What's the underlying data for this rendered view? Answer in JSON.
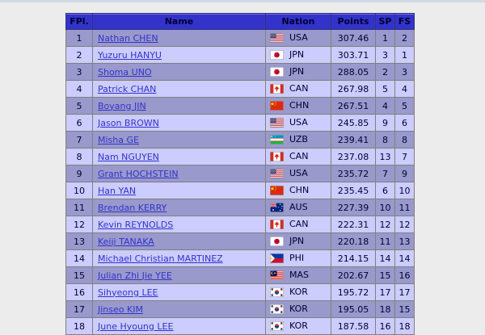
{
  "page": {
    "background": "#ececec",
    "top_strip_color": "#cfd9e4"
  },
  "table": {
    "headers": [
      "FPl.",
      "Name",
      "Nation",
      "Points",
      "SP",
      "FS"
    ],
    "colors": {
      "header_bg": "#3333cc",
      "header_text": "#000033",
      "row_odd": "#9999cc",
      "row_even": "#ccccff",
      "cell_text": "#000033",
      "link": "#3333cc",
      "cell_border": "#808080",
      "outer_border": "#4d4d4d"
    },
    "rows": [
      {
        "rank": "1",
        "name": "Nathan CHEN",
        "nation": "USA",
        "flag": "usa",
        "points": "307.46",
        "sp": "1",
        "fs": "2"
      },
      {
        "rank": "2",
        "name": "Yuzuru HANYU",
        "nation": "JPN",
        "flag": "jpn",
        "points": "303.71",
        "sp": "3",
        "fs": "1"
      },
      {
        "rank": "3",
        "name": "Shoma UNO",
        "nation": "JPN",
        "flag": "jpn",
        "points": "288.05",
        "sp": "2",
        "fs": "3"
      },
      {
        "rank": "4",
        "name": "Patrick CHAN",
        "nation": "CAN",
        "flag": "can",
        "points": "267.98",
        "sp": "5",
        "fs": "4"
      },
      {
        "rank": "5",
        "name": "Boyang JIN",
        "nation": "CHN",
        "flag": "chn",
        "points": "267.51",
        "sp": "4",
        "fs": "5"
      },
      {
        "rank": "6",
        "name": "Jason BROWN",
        "nation": "USA",
        "flag": "usa",
        "points": "245.85",
        "sp": "9",
        "fs": "6"
      },
      {
        "rank": "7",
        "name": "Misha GE",
        "nation": "UZB",
        "flag": "uzb",
        "points": "239.41",
        "sp": "8",
        "fs": "8"
      },
      {
        "rank": "8",
        "name": "Nam NGUYEN",
        "nation": "CAN",
        "flag": "can",
        "points": "237.08",
        "sp": "13",
        "fs": "7"
      },
      {
        "rank": "9",
        "name": "Grant HOCHSTEIN",
        "nation": "USA",
        "flag": "usa",
        "points": "235.72",
        "sp": "7",
        "fs": "9"
      },
      {
        "rank": "10",
        "name": "Han YAN",
        "nation": "CHN",
        "flag": "chn",
        "points": "235.45",
        "sp": "6",
        "fs": "10"
      },
      {
        "rank": "11",
        "name": "Brendan KERRY",
        "nation": "AUS",
        "flag": "aus",
        "points": "227.39",
        "sp": "10",
        "fs": "11"
      },
      {
        "rank": "12",
        "name": "Kevin REYNOLDS",
        "nation": "CAN",
        "flag": "can",
        "points": "222.31",
        "sp": "12",
        "fs": "12"
      },
      {
        "rank": "13",
        "name": "Keiji TANAKA",
        "nation": "JPN",
        "flag": "jpn",
        "points": "220.18",
        "sp": "11",
        "fs": "13"
      },
      {
        "rank": "14",
        "name": "Michael Christian MARTINEZ",
        "nation": "PHI",
        "flag": "phi",
        "points": "214.15",
        "sp": "14",
        "fs": "14"
      },
      {
        "rank": "15",
        "name": "Julian Zhi Jie YEE",
        "nation": "MAS",
        "flag": "mas",
        "points": "202.67",
        "sp": "15",
        "fs": "16"
      },
      {
        "rank": "16",
        "name": "Sihyeong LEE",
        "nation": "KOR",
        "flag": "kor",
        "points": "195.72",
        "sp": "17",
        "fs": "17"
      },
      {
        "rank": "17",
        "name": "Jinseo KIM",
        "nation": "KOR",
        "flag": "kor",
        "points": "195.05",
        "sp": "18",
        "fs": "15"
      },
      {
        "rank": "18",
        "name": "June Hyoung LEE",
        "nation": "KOR",
        "flag": "kor",
        "points": "187.58",
        "sp": "16",
        "fs": "18"
      }
    ]
  }
}
